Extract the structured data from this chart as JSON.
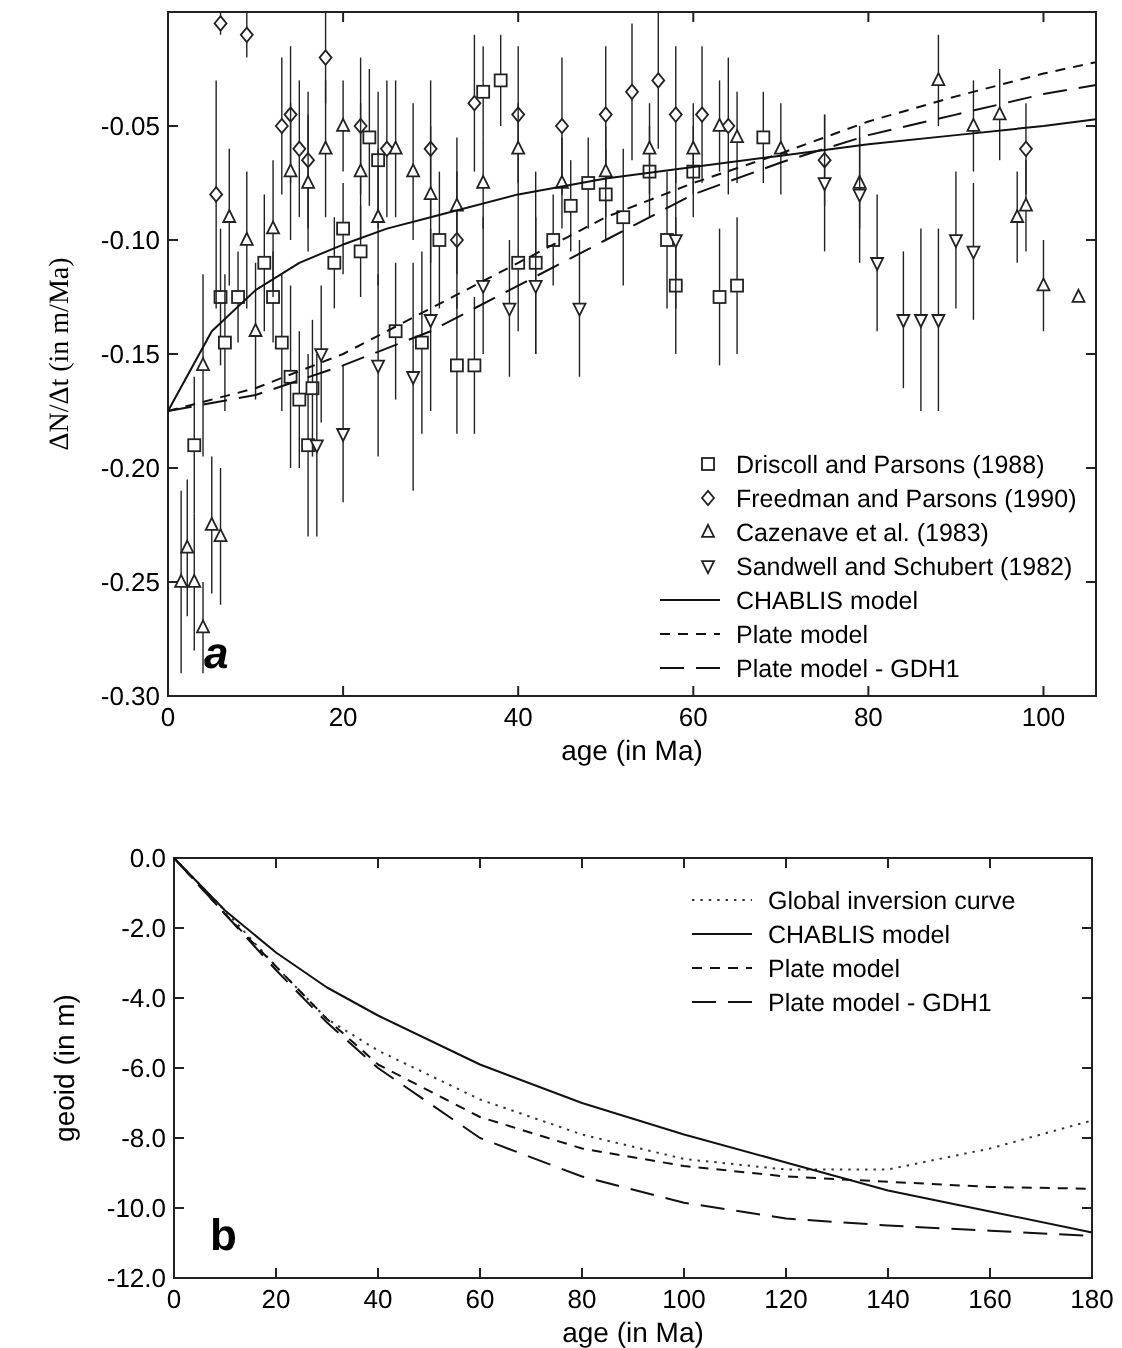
{
  "chart_data": [
    {
      "type": "scatter",
      "xlabel": "age (in Ma)",
      "ylabel": "ΔN/Δt (in m/Ma)",
      "xlim": [
        0,
        106
      ],
      "xticks": [
        0,
        20,
        40,
        60,
        80,
        100
      ],
      "ylim": [
        -0.3,
        0
      ],
      "yticks": [
        {
          "value": -0.3,
          "label": "-0.30"
        },
        {
          "value": -0.25,
          "label": "-0.25"
        },
        {
          "value": -0.2,
          "label": "-0.20"
        },
        {
          "value": -0.15,
          "label": "-0.15"
        },
        {
          "value": -0.1,
          "label": "-0.10"
        },
        {
          "value": -0.05,
          "label": "-0.05"
        }
      ],
      "legend": "bottom right",
      "annotations": [
        "a"
      ],
      "series": [
        {
          "name": "Driscoll and Parsons (1988)",
          "marker": "square",
          "color": "#222222",
          "x": [
            3,
            6,
            6.5,
            8,
            11,
            12,
            13,
            14,
            15,
            16,
            16.5,
            19,
            20,
            22,
            23,
            24,
            26,
            29,
            31,
            33,
            35,
            36,
            38,
            40,
            42,
            44,
            46,
            48,
            50,
            52,
            55,
            57,
            58,
            60,
            63,
            65,
            68
          ],
          "values": [
            -0.19,
            -0.125,
            -0.145,
            -0.125,
            -0.11,
            -0.125,
            -0.145,
            -0.16,
            -0.17,
            -0.19,
            -0.165,
            -0.11,
            -0.095,
            -0.105,
            -0.055,
            -0.065,
            -0.14,
            -0.145,
            -0.1,
            -0.155,
            -0.155,
            -0.035,
            -0.03,
            -0.11,
            -0.11,
            -0.1,
            -0.085,
            -0.075,
            -0.08,
            -0.09,
            -0.07,
            -0.1,
            -0.12,
            -0.07,
            -0.125,
            -0.12,
            -0.055
          ],
          "errors": [
            0.03,
            0.03,
            0.03,
            0.02,
            0.03,
            0.02,
            0.03,
            0.04,
            0.03,
            0.04,
            0.03,
            0.02,
            0.02,
            0.02,
            0.03,
            0.03,
            0.03,
            0.04,
            0.03,
            0.03,
            0.03,
            0.02,
            0.02,
            0.03,
            0.04,
            0.02,
            0.02,
            0.02,
            0.02,
            0.03,
            0.02,
            0.03,
            0.03,
            0.02,
            0.03,
            0.03,
            0.02
          ]
        },
        {
          "name": "Freedman and Parsons (1990)",
          "marker": "diamond",
          "color": "#222222",
          "x": [
            5.5,
            6,
            9,
            13,
            14,
            15,
            16,
            18,
            22,
            25,
            30,
            33,
            35,
            40,
            45,
            50,
            53,
            56,
            58,
            61,
            64,
            75,
            98
          ],
          "values": [
            -0.08,
            -0.005,
            -0.01,
            -0.05,
            -0.045,
            -0.06,
            -0.065,
            -0.02,
            -0.05,
            -0.06,
            -0.06,
            -0.1,
            -0.04,
            -0.045,
            -0.05,
            -0.045,
            -0.035,
            -0.03,
            -0.045,
            -0.045,
            -0.05,
            -0.065,
            -0.06
          ],
          "errors": [
            0.05,
            0.005,
            0.01,
            0.03,
            0.03,
            0.03,
            0.03,
            0.02,
            0.03,
            0.03,
            0.03,
            0.03,
            0.03,
            0.03,
            0.03,
            0.03,
            0.03,
            0.03,
            0.03,
            0.03,
            0.03,
            0.02,
            0.02
          ]
        },
        {
          "name": "Cazenave et al. (1983)",
          "marker": "triangle",
          "color": "#222222",
          "x": [
            1.5,
            2.2,
            3,
            4,
            5,
            6,
            4,
            7,
            9,
            10,
            12,
            14,
            16,
            18,
            20,
            22,
            24,
            26,
            28,
            30,
            33,
            36,
            40,
            45,
            50,
            55,
            60,
            63,
            65,
            70,
            79,
            88,
            92,
            95,
            97,
            98,
            100,
            104
          ],
          "values": [
            -0.25,
            -0.235,
            -0.25,
            -0.27,
            -0.225,
            -0.23,
            -0.155,
            -0.09,
            -0.1,
            -0.14,
            -0.095,
            -0.07,
            -0.075,
            -0.06,
            -0.05,
            -0.07,
            -0.09,
            -0.06,
            -0.07,
            -0.08,
            -0.085,
            -0.075,
            -0.06,
            -0.075,
            -0.07,
            -0.06,
            -0.06,
            -0.05,
            -0.055,
            -0.06,
            -0.075,
            -0.03,
            -0.05,
            -0.045,
            -0.09,
            -0.085,
            -0.12,
            -0.125
          ],
          "errors": [
            0.04,
            0.03,
            0.03,
            0.02,
            0.03,
            0.03,
            0.04,
            0.03,
            0.03,
            0.03,
            0.03,
            0.03,
            0.03,
            0.03,
            0.02,
            0.03,
            0.03,
            0.03,
            0.03,
            0.03,
            0.03,
            0.02,
            0.02,
            0.02,
            0.02,
            0.02,
            0.02,
            0.02,
            0.02,
            0.02,
            0.02,
            0.02,
            0.02,
            0.02,
            0.02,
            0.02,
            0.02,
            null
          ]
        },
        {
          "name": "Sandwell and Schubert (1982)",
          "marker": "triangle-down",
          "color": "#222222",
          "x": [
            17,
            17.5,
            20,
            24,
            28,
            30,
            36,
            39,
            42,
            47,
            58,
            75,
            79,
            81,
            84,
            86,
            88,
            90,
            92
          ],
          "values": [
            -0.19,
            -0.15,
            -0.185,
            -0.155,
            -0.16,
            -0.135,
            -0.12,
            -0.13,
            -0.12,
            -0.13,
            -0.1,
            -0.075,
            -0.08,
            -0.11,
            -0.135,
            -0.135,
            -0.135,
            -0.1,
            -0.105
          ],
          "errors": [
            0.04,
            0.03,
            0.03,
            0.04,
            0.05,
            0.04,
            0.03,
            0.03,
            0.03,
            0.03,
            0.03,
            0.03,
            0.03,
            0.03,
            0.03,
            0.04,
            0.04,
            0.03,
            0.03
          ]
        },
        {
          "name": "CHABLIS model",
          "type": "line",
          "line_style": "solid",
          "color": "#111111",
          "x": [
            0,
            5,
            10,
            15,
            20,
            25,
            30,
            40,
            50,
            60,
            70,
            80,
            90,
            100,
            106
          ],
          "values": [
            -0.175,
            -0.14,
            -0.122,
            -0.11,
            -0.102,
            -0.095,
            -0.09,
            -0.08,
            -0.073,
            -0.068,
            -0.063,
            -0.058,
            -0.054,
            -0.05,
            -0.047
          ]
        },
        {
          "name": "Plate model",
          "type": "line",
          "line_style": "dashed",
          "color": "#111111",
          "x": [
            0,
            10,
            20,
            30,
            40,
            50,
            60,
            70,
            80,
            90,
            100,
            106
          ],
          "values": [
            -0.175,
            -0.165,
            -0.15,
            -0.13,
            -0.11,
            -0.09,
            -0.075,
            -0.062,
            -0.048,
            -0.037,
            -0.027,
            -0.022
          ]
        },
        {
          "name": "Plate model - GDH1",
          "type": "line",
          "line_style": "dashed",
          "color": "#111111",
          "x": [
            0,
            10,
            20,
            30,
            40,
            50,
            60,
            70,
            80,
            90,
            100,
            106
          ],
          "values": [
            -0.175,
            -0.168,
            -0.155,
            -0.14,
            -0.12,
            -0.1,
            -0.08,
            -0.066,
            -0.054,
            -0.045,
            -0.036,
            -0.032
          ]
        }
      ]
    },
    {
      "type": "line",
      "xlabel": "age (in Ma)",
      "ylabel": "geoid (in m)",
      "xlim": [
        0,
        180
      ],
      "xticks": [
        0,
        20,
        40,
        60,
        80,
        100,
        120,
        140,
        160,
        180
      ],
      "ylim": [
        -12,
        0
      ],
      "yticks": [
        {
          "value": -12,
          "label": "-12.0"
        },
        {
          "value": -10,
          "label": "-10.0"
        },
        {
          "value": -8,
          "label": "-8.0"
        },
        {
          "value": -6,
          "label": "-6.0"
        },
        {
          "value": -4,
          "label": "-4.0"
        },
        {
          "value": -2,
          "label": "-2.0"
        },
        {
          "value": 0,
          "label": "0.0"
        }
      ],
      "legend": "top right",
      "annotations": [
        "b"
      ],
      "series": [
        {
          "name": "Global inversion curve",
          "line_style": "dotted",
          "color": "#333333",
          "x": [
            0,
            10,
            20,
            30,
            40,
            50,
            60,
            80,
            100,
            120,
            140,
            160,
            180
          ],
          "values": [
            0,
            -1.5,
            -3.1,
            -4.6,
            -5.5,
            -6.2,
            -6.9,
            -7.9,
            -8.6,
            -8.9,
            -8.9,
            -8.3,
            -7.5
          ]
        },
        {
          "name": "CHABLIS model",
          "line_style": "solid",
          "color": "#111111",
          "x": [
            0,
            10,
            20,
            30,
            40,
            60,
            80,
            100,
            120,
            140,
            160,
            180
          ],
          "values": [
            0,
            -1.5,
            -2.7,
            -3.7,
            -4.5,
            -5.9,
            -7,
            -7.9,
            -8.7,
            -9.5,
            -10.1,
            -10.7
          ]
        },
        {
          "name": "Plate model",
          "line_style": "dashed",
          "color": "#111111",
          "x": [
            0,
            10,
            20,
            30,
            40,
            60,
            80,
            100,
            120,
            140,
            160,
            180
          ],
          "values": [
            0,
            -1.6,
            -3.1,
            -4.6,
            -5.9,
            -7.4,
            -8.3,
            -8.8,
            -9.1,
            -9.25,
            -9.4,
            -9.45
          ]
        },
        {
          "name": "Plate model - GDH1",
          "line_style": "dashed",
          "color": "#111111",
          "x": [
            0,
            10,
            20,
            30,
            40,
            60,
            80,
            100,
            120,
            140,
            160,
            180
          ],
          "values": [
            0,
            -1.6,
            -3.2,
            -4.7,
            -6,
            -8,
            -9.1,
            -9.85,
            -10.3,
            -10.5,
            -10.65,
            -10.8
          ]
        }
      ]
    }
  ]
}
